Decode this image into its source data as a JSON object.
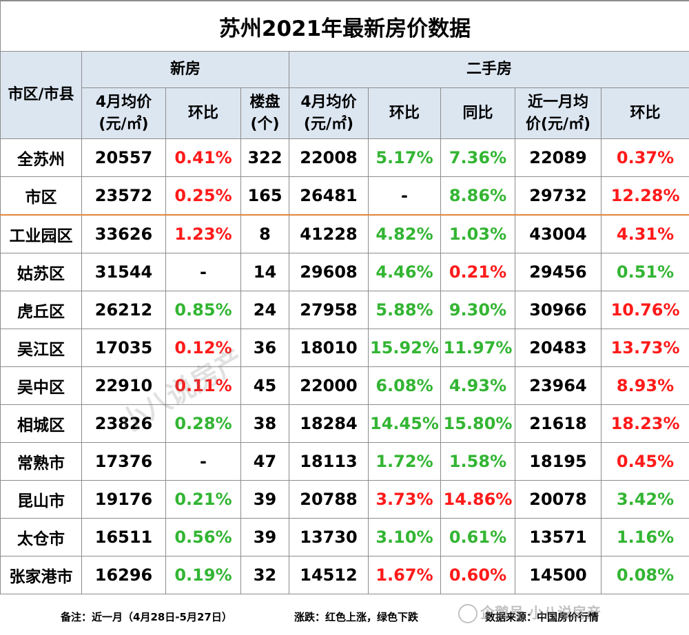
{
  "title": "苏州2021年最新房价数据",
  "header": {
    "district": "市区/市县",
    "new_house": "新房",
    "second_hand": "二手房",
    "cols": {
      "new_avg": "4月均价(元/㎡)",
      "new_mom": "环比",
      "new_projects": "楼盘(个)",
      "sh_avg": "4月均价(元/㎡)",
      "sh_mom": "环比",
      "sh_yoy": "同比",
      "sh_recent": "近一月均价(元/㎡)",
      "sh_recent_mom": "环比"
    }
  },
  "colors": {
    "up": "#ff1a1a",
    "down": "#33b533",
    "header_bg": "#dce6f1"
  },
  "rows": [
    {
      "name": "全苏州",
      "new_avg": "20557",
      "new_mom": "0.41%",
      "new_mom_c": "red",
      "proj": "322",
      "sh_avg": "22008",
      "sh_mom": "5.17%",
      "sh_mom_c": "green",
      "sh_yoy": "7.36%",
      "sh_yoy_c": "green",
      "recent": "22089",
      "recent_mom": "0.37%",
      "recent_mom_c": "red"
    },
    {
      "name": "市区",
      "new_avg": "23572",
      "new_mom": "0.25%",
      "new_mom_c": "red",
      "proj": "165",
      "sh_avg": "26481",
      "sh_mom": "-",
      "sh_mom_c": "",
      "sh_yoy": "8.86%",
      "sh_yoy_c": "green",
      "recent": "29732",
      "recent_mom": "12.28%",
      "recent_mom_c": "red"
    },
    {
      "name": "工业园区",
      "new_avg": "33626",
      "new_mom": "1.23%",
      "new_mom_c": "red",
      "proj": "8",
      "sh_avg": "41228",
      "sh_mom": "4.82%",
      "sh_mom_c": "green",
      "sh_yoy": "1.03%",
      "sh_yoy_c": "green",
      "recent": "43004",
      "recent_mom": "4.31%",
      "recent_mom_c": "red"
    },
    {
      "name": "姑苏区",
      "new_avg": "31544",
      "new_mom": "-",
      "new_mom_c": "",
      "proj": "14",
      "sh_avg": "29608",
      "sh_mom": "4.46%",
      "sh_mom_c": "green",
      "sh_yoy": "0.21%",
      "sh_yoy_c": "red",
      "recent": "29456",
      "recent_mom": "0.51%",
      "recent_mom_c": "green"
    },
    {
      "name": "虎丘区",
      "new_avg": "26212",
      "new_mom": "0.85%",
      "new_mom_c": "green",
      "proj": "24",
      "sh_avg": "27958",
      "sh_mom": "5.88%",
      "sh_mom_c": "green",
      "sh_yoy": "9.30%",
      "sh_yoy_c": "green",
      "recent": "30966",
      "recent_mom": "10.76%",
      "recent_mom_c": "red"
    },
    {
      "name": "吴江区",
      "new_avg": "17035",
      "new_mom": "0.12%",
      "new_mom_c": "red",
      "proj": "36",
      "sh_avg": "18010",
      "sh_mom": "15.92%",
      "sh_mom_c": "green",
      "sh_yoy": "11.97%",
      "sh_yoy_c": "green",
      "recent": "20483",
      "recent_mom": "13.73%",
      "recent_mom_c": "red"
    },
    {
      "name": "吴中区",
      "new_avg": "22910",
      "new_mom": "0.11%",
      "new_mom_c": "red",
      "proj": "45",
      "sh_avg": "22000",
      "sh_mom": "6.08%",
      "sh_mom_c": "green",
      "sh_yoy": "4.93%",
      "sh_yoy_c": "green",
      "recent": "23964",
      "recent_mom": "8.93%",
      "recent_mom_c": "red"
    },
    {
      "name": "相城区",
      "new_avg": "23826",
      "new_mom": "0.28%",
      "new_mom_c": "green",
      "proj": "38",
      "sh_avg": "18284",
      "sh_mom": "14.45%",
      "sh_mom_c": "green",
      "sh_yoy": "15.80%",
      "sh_yoy_c": "green",
      "recent": "21618",
      "recent_mom": "18.23%",
      "recent_mom_c": "red"
    },
    {
      "name": "常熟市",
      "new_avg": "17376",
      "new_mom": "-",
      "new_mom_c": "",
      "proj": "47",
      "sh_avg": "18113",
      "sh_mom": "1.72%",
      "sh_mom_c": "green",
      "sh_yoy": "1.58%",
      "sh_yoy_c": "green",
      "recent": "18195",
      "recent_mom": "0.45%",
      "recent_mom_c": "red"
    },
    {
      "name": "昆山市",
      "new_avg": "19176",
      "new_mom": "0.21%",
      "new_mom_c": "green",
      "proj": "39",
      "sh_avg": "20788",
      "sh_mom": "3.73%",
      "sh_mom_c": "red",
      "sh_yoy": "14.86%",
      "sh_yoy_c": "red",
      "recent": "20078",
      "recent_mom": "3.42%",
      "recent_mom_c": "green"
    },
    {
      "name": "太仓市",
      "new_avg": "16511",
      "new_mom": "0.56%",
      "new_mom_c": "green",
      "proj": "39",
      "sh_avg": "13730",
      "sh_mom": "3.10%",
      "sh_mom_c": "green",
      "sh_yoy": "0.61%",
      "sh_yoy_c": "green",
      "recent": "13571",
      "recent_mom": "1.16%",
      "recent_mom_c": "green"
    },
    {
      "name": "张家港市",
      "new_avg": "16296",
      "new_mom": "0.19%",
      "new_mom_c": "green",
      "proj": "32",
      "sh_avg": "14512",
      "sh_mom": "1.67%",
      "sh_mom_c": "red",
      "sh_yoy": "0.60%",
      "sh_yoy_c": "red",
      "recent": "14500",
      "recent_mom": "0.08%",
      "recent_mom_c": "green"
    }
  ],
  "notes": {
    "remark": "备注：近一月（4月28日-5月27日）",
    "legend": "涨跌：红色上涨，绿色下跌",
    "source": "数据来源：中国房价行情"
  },
  "watermarks": {
    "diagonal": "小八说房产",
    "bottom": "企鹅号 小八说房产"
  }
}
